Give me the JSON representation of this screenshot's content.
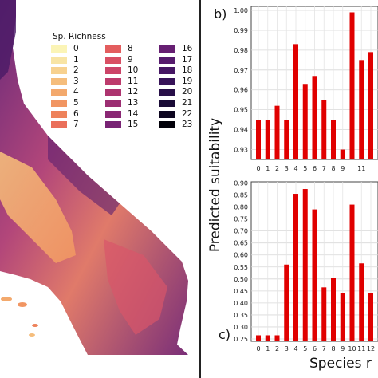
{
  "legend": {
    "title": "Sp. Richness",
    "items": [
      {
        "label": "0",
        "color": "#fbf4b6"
      },
      {
        "label": "1",
        "color": "#f8e4a4"
      },
      {
        "label": "2",
        "color": "#f7d18f"
      },
      {
        "label": "3",
        "color": "#f5bd7c"
      },
      {
        "label": "4",
        "color": "#f3a96d"
      },
      {
        "label": "5",
        "color": "#f19562"
      },
      {
        "label": "6",
        "color": "#ee825b"
      },
      {
        "label": "7",
        "color": "#ea6f5a"
      },
      {
        "label": "8",
        "color": "#e35d5e"
      },
      {
        "label": "9",
        "color": "#d94f63"
      },
      {
        "label": "10",
        "color": "#cc4468"
      },
      {
        "label": "11",
        "color": "#bd3b6c"
      },
      {
        "label": "12",
        "color": "#ad346f"
      },
      {
        "label": "13",
        "color": "#9c2e72"
      },
      {
        "label": "14",
        "color": "#8a2874"
      },
      {
        "label": "15",
        "color": "#782374"
      },
      {
        "label": "16",
        "color": "#661f72"
      },
      {
        "label": "17",
        "color": "#561b6d"
      },
      {
        "label": "18",
        "color": "#461764"
      },
      {
        "label": "19",
        "color": "#371358"
      },
      {
        "label": "20",
        "color": "#280f48"
      },
      {
        "label": "21",
        "color": "#1a0b36"
      },
      {
        "label": "22",
        "color": "#0d0620"
      },
      {
        "label": "23",
        "color": "#02010a"
      }
    ]
  },
  "panels": {
    "b_label": "b)",
    "c_label": "c)",
    "y_title": "Predicted suitability",
    "x_title": "Species r"
  },
  "chart_data": [
    {
      "type": "bar",
      "panel": "b",
      "categories": [
        "0",
        "1",
        "2",
        "3",
        "4",
        "5",
        "6",
        "7",
        "8",
        "9",
        "10",
        "11",
        "12"
      ],
      "values": [
        0.945,
        0.945,
        0.952,
        0.945,
        0.983,
        0.963,
        0.967,
        0.955,
        0.945,
        0.93,
        0.999,
        0.975,
        0.979
      ],
      "tick_labels_x": [
        "0",
        "1",
        "2",
        "3",
        "4",
        "5",
        "6",
        "7",
        "8",
        "9",
        "",
        "11",
        ""
      ],
      "yticks": [
        0.93,
        0.94,
        0.95,
        0.96,
        0.97,
        0.98,
        0.99,
        1.0
      ],
      "ytick_labels": [
        "0.93",
        "0.94",
        "0.95",
        "0.96",
        "0.97",
        "0.98",
        "0.99",
        "1.00"
      ],
      "ylim": [
        0.925,
        1.002
      ],
      "bar_color": "#e00000",
      "grid": true
    },
    {
      "type": "bar",
      "panel": "c",
      "categories": [
        "0",
        "1",
        "2",
        "3",
        "4",
        "5",
        "6",
        "7",
        "8",
        "9",
        "10",
        "11",
        "12"
      ],
      "values": [
        0.265,
        0.265,
        0.265,
        0.56,
        0.855,
        0.875,
        0.79,
        0.465,
        0.505,
        0.44,
        0.81,
        0.565,
        0.44
      ],
      "tick_labels_x": [
        "0",
        "1",
        "2",
        "3",
        "4",
        "5",
        "6",
        "7",
        "8",
        "9",
        "10",
        "11",
        "12"
      ],
      "yticks": [
        0.25,
        0.3,
        0.35,
        0.4,
        0.45,
        0.5,
        0.55,
        0.6,
        0.65,
        0.7,
        0.75,
        0.8,
        0.85,
        0.9
      ],
      "ytick_labels": [
        "0.25",
        "0.30",
        "0.35",
        "0.40",
        "0.45",
        "0.50",
        "0.55",
        "0.60",
        "0.65",
        "0.70",
        "0.75",
        "0.80",
        "0.85",
        "0.90"
      ],
      "ylim": [
        0.24,
        0.905
      ],
      "bar_color": "#e00000",
      "grid": true
    }
  ]
}
